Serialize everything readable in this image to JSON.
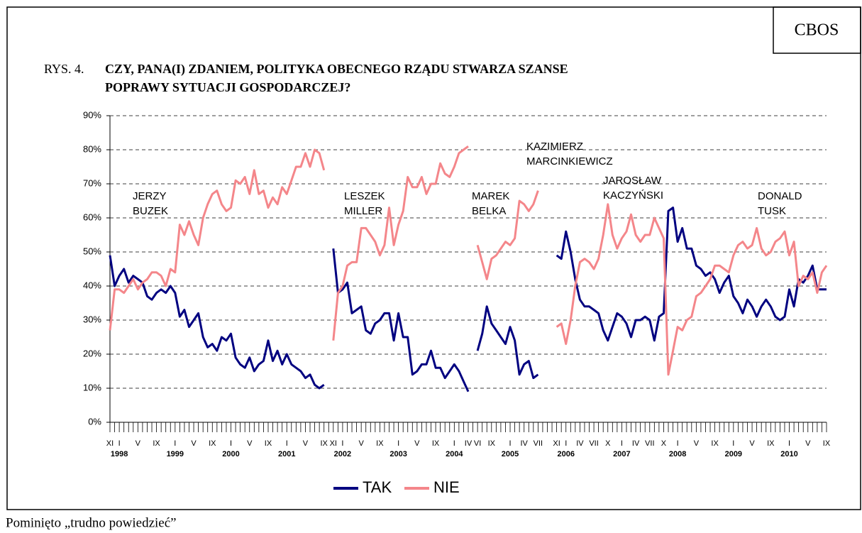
{
  "chart_data": {
    "type": "line",
    "badge": "CBOS",
    "title_prefix": "RYS. 4.",
    "title": [
      "CZY, PANA(I) ZDANIEM, POLITYKA OBECNEGO RZĄDU STWARZA SZANSE",
      "POPRAWY SYTUACJI GOSPODARCZEJ?"
    ],
    "footnote": "Pominięto „trudno powiedzieć”",
    "annotations": [
      [
        "JERZY",
        "BUZEK"
      ],
      [
        "LESZEK",
        "MILLER"
      ],
      [
        "MAREK",
        "BELKA"
      ],
      [
        "KAZIMIERZ",
        "MARCINKIEWICZ"
      ],
      [
        "JAROSŁAW",
        "KACZYŃSKI"
      ],
      [
        "DONALD",
        "TUSK"
      ]
    ],
    "categories": [
      "XI",
      null,
      "I",
      null,
      null,
      null,
      "V",
      null,
      null,
      null,
      "IX",
      null,
      null,
      null,
      "I",
      null,
      null,
      null,
      "V",
      null,
      null,
      null,
      "IX",
      null,
      null,
      null,
      "I",
      null,
      null,
      null,
      "V",
      null,
      null,
      null,
      "IX",
      null,
      null,
      null,
      "I",
      null,
      null,
      null,
      "V",
      null,
      null,
      null,
      "IX",
      null,
      "XI",
      null,
      "I",
      null,
      null,
      null,
      "V",
      null,
      null,
      null,
      "IX",
      null,
      null,
      null,
      "I",
      null,
      null,
      null,
      "V",
      null,
      null,
      null,
      "IX",
      null,
      null,
      null,
      "I",
      null,
      null,
      "IV",
      null,
      "VI",
      null,
      null,
      "IX",
      null,
      null,
      null,
      "I",
      null,
      null,
      "IV",
      null,
      null,
      "VII",
      null,
      null,
      null,
      "XI",
      null,
      "I",
      null,
      null,
      "IV",
      null,
      null,
      "VII",
      null,
      null,
      "X",
      null,
      null,
      "I",
      null,
      null,
      "IV",
      null,
      null,
      "VII",
      null,
      null,
      "X",
      null,
      null,
      "I",
      null,
      null,
      null,
      "V",
      null,
      null,
      null,
      "IX",
      null,
      null,
      null,
      "I",
      null,
      null,
      null,
      "V",
      null,
      null,
      null,
      "IX",
      null,
      null,
      null,
      "I",
      null,
      null,
      null,
      "V",
      null,
      null,
      null,
      "IX"
    ],
    "years": [
      null,
      null,
      "1998",
      null,
      null,
      null,
      null,
      null,
      null,
      null,
      null,
      null,
      null,
      null,
      "1999",
      null,
      null,
      null,
      null,
      null,
      null,
      null,
      null,
      null,
      null,
      null,
      "2000",
      null,
      null,
      null,
      null,
      null,
      null,
      null,
      null,
      null,
      null,
      null,
      "2001",
      null,
      null,
      null,
      null,
      null,
      null,
      null,
      null,
      null,
      null,
      null,
      "2002",
      null,
      null,
      null,
      null,
      null,
      null,
      null,
      null,
      null,
      null,
      null,
      "2003",
      null,
      null,
      null,
      null,
      null,
      null,
      null,
      null,
      null,
      null,
      null,
      "2004",
      null,
      null,
      null,
      null,
      null,
      null,
      null,
      null,
      null,
      null,
      null,
      "2005",
      null,
      null,
      null,
      null,
      null,
      null,
      null,
      null,
      null,
      null,
      null,
      "2006",
      null,
      null,
      null,
      null,
      null,
      null,
      null,
      null,
      null,
      null,
      null,
      "2007",
      null,
      null,
      null,
      null,
      null,
      null,
      null,
      null,
      null,
      null,
      null,
      "2008",
      null,
      null,
      null,
      null,
      null,
      null,
      null,
      null,
      null,
      null,
      null,
      "2009",
      null,
      null,
      null,
      null,
      null,
      null,
      null,
      null,
      null,
      null,
      null,
      "2010",
      null,
      null,
      null,
      null,
      null,
      null,
      null,
      null
    ],
    "series": [
      {
        "name": "TAK",
        "color": "#000080",
        "values": [
          49,
          40,
          43,
          45,
          41,
          43,
          42,
          41,
          37,
          36,
          38,
          39,
          38,
          40,
          38,
          31,
          33,
          28,
          30,
          32,
          25,
          22,
          23,
          21,
          25,
          24,
          26,
          19,
          17,
          16,
          19,
          15,
          17,
          18,
          24,
          18,
          21,
          17,
          20,
          17,
          16,
          15,
          13,
          14,
          11,
          10,
          11,
          null,
          51,
          38,
          39,
          41,
          32,
          33,
          34,
          27,
          26,
          29,
          30,
          32,
          32,
          24,
          32,
          25,
          25,
          14,
          15,
          17,
          17,
          21,
          16,
          16,
          13,
          15,
          17,
          15,
          12,
          9,
          null,
          21,
          26,
          34,
          29,
          27,
          25,
          23,
          28,
          24,
          14,
          17,
          18,
          13,
          14,
          null,
          null,
          null,
          49,
          48,
          56,
          50,
          42,
          36,
          34,
          34,
          33,
          32,
          27,
          24,
          28,
          32,
          31,
          29,
          25,
          30,
          30,
          31,
          30,
          24,
          31,
          32,
          62,
          63,
          53,
          57,
          51,
          51,
          46,
          45,
          43,
          44,
          42,
          38,
          41,
          43,
          37,
          35,
          32,
          36,
          34,
          31,
          34,
          36,
          34,
          31,
          30,
          31,
          39,
          34,
          42,
          41,
          43,
          46,
          39,
          39,
          39
        ]
      },
      {
        "name": "NIE",
        "color": "#f4868a",
        "values": [
          27,
          39,
          39,
          38,
          40,
          42,
          39,
          41,
          42,
          44,
          44,
          43,
          40,
          45,
          44,
          58,
          55,
          59,
          55,
          52,
          60,
          64,
          67,
          68,
          64,
          62,
          63,
          71,
          70,
          72,
          67,
          74,
          67,
          68,
          63,
          66,
          64,
          69,
          67,
          71,
          75,
          75,
          79,
          75,
          80,
          79,
          74,
          null,
          24,
          38,
          40,
          46,
          47,
          47,
          57,
          57,
          55,
          53,
          49,
          52,
          63,
          52,
          58,
          62,
          72,
          69,
          69,
          72,
          67,
          70,
          70,
          76,
          73,
          72,
          75,
          79,
          80,
          81,
          null,
          52,
          47,
          42,
          48,
          49,
          51,
          53,
          52,
          54,
          65,
          64,
          62,
          64,
          68,
          null,
          null,
          null,
          28,
          29,
          23,
          30,
          40,
          47,
          48,
          47,
          45,
          48,
          55,
          64,
          55,
          51,
          54,
          56,
          61,
          55,
          53,
          55,
          55,
          60,
          57,
          54,
          14,
          21,
          28,
          27,
          30,
          31,
          37,
          38,
          40,
          42,
          46,
          46,
          45,
          44,
          49,
          52,
          53,
          51,
          52,
          57,
          51,
          49,
          50,
          53,
          54,
          56,
          49,
          53,
          40,
          43,
          42,
          44,
          38,
          44,
          46
        ]
      }
    ],
    "ylim": [
      0,
      90
    ],
    "yticks": [
      {
        "value": 0,
        "label": "0%"
      },
      {
        "value": 10,
        "label": "10%"
      },
      {
        "value": 20,
        "label": "20%"
      },
      {
        "value": 30,
        "label": "30%"
      },
      {
        "value": 40,
        "label": "40%"
      },
      {
        "value": 50,
        "label": "50%"
      },
      {
        "value": 60,
        "label": "60%"
      },
      {
        "value": 70,
        "label": "70%"
      },
      {
        "value": 80,
        "label": "80%"
      },
      {
        "value": 90,
        "label": "90%"
      }
    ],
    "grid": true,
    "legend": "bottom"
  }
}
